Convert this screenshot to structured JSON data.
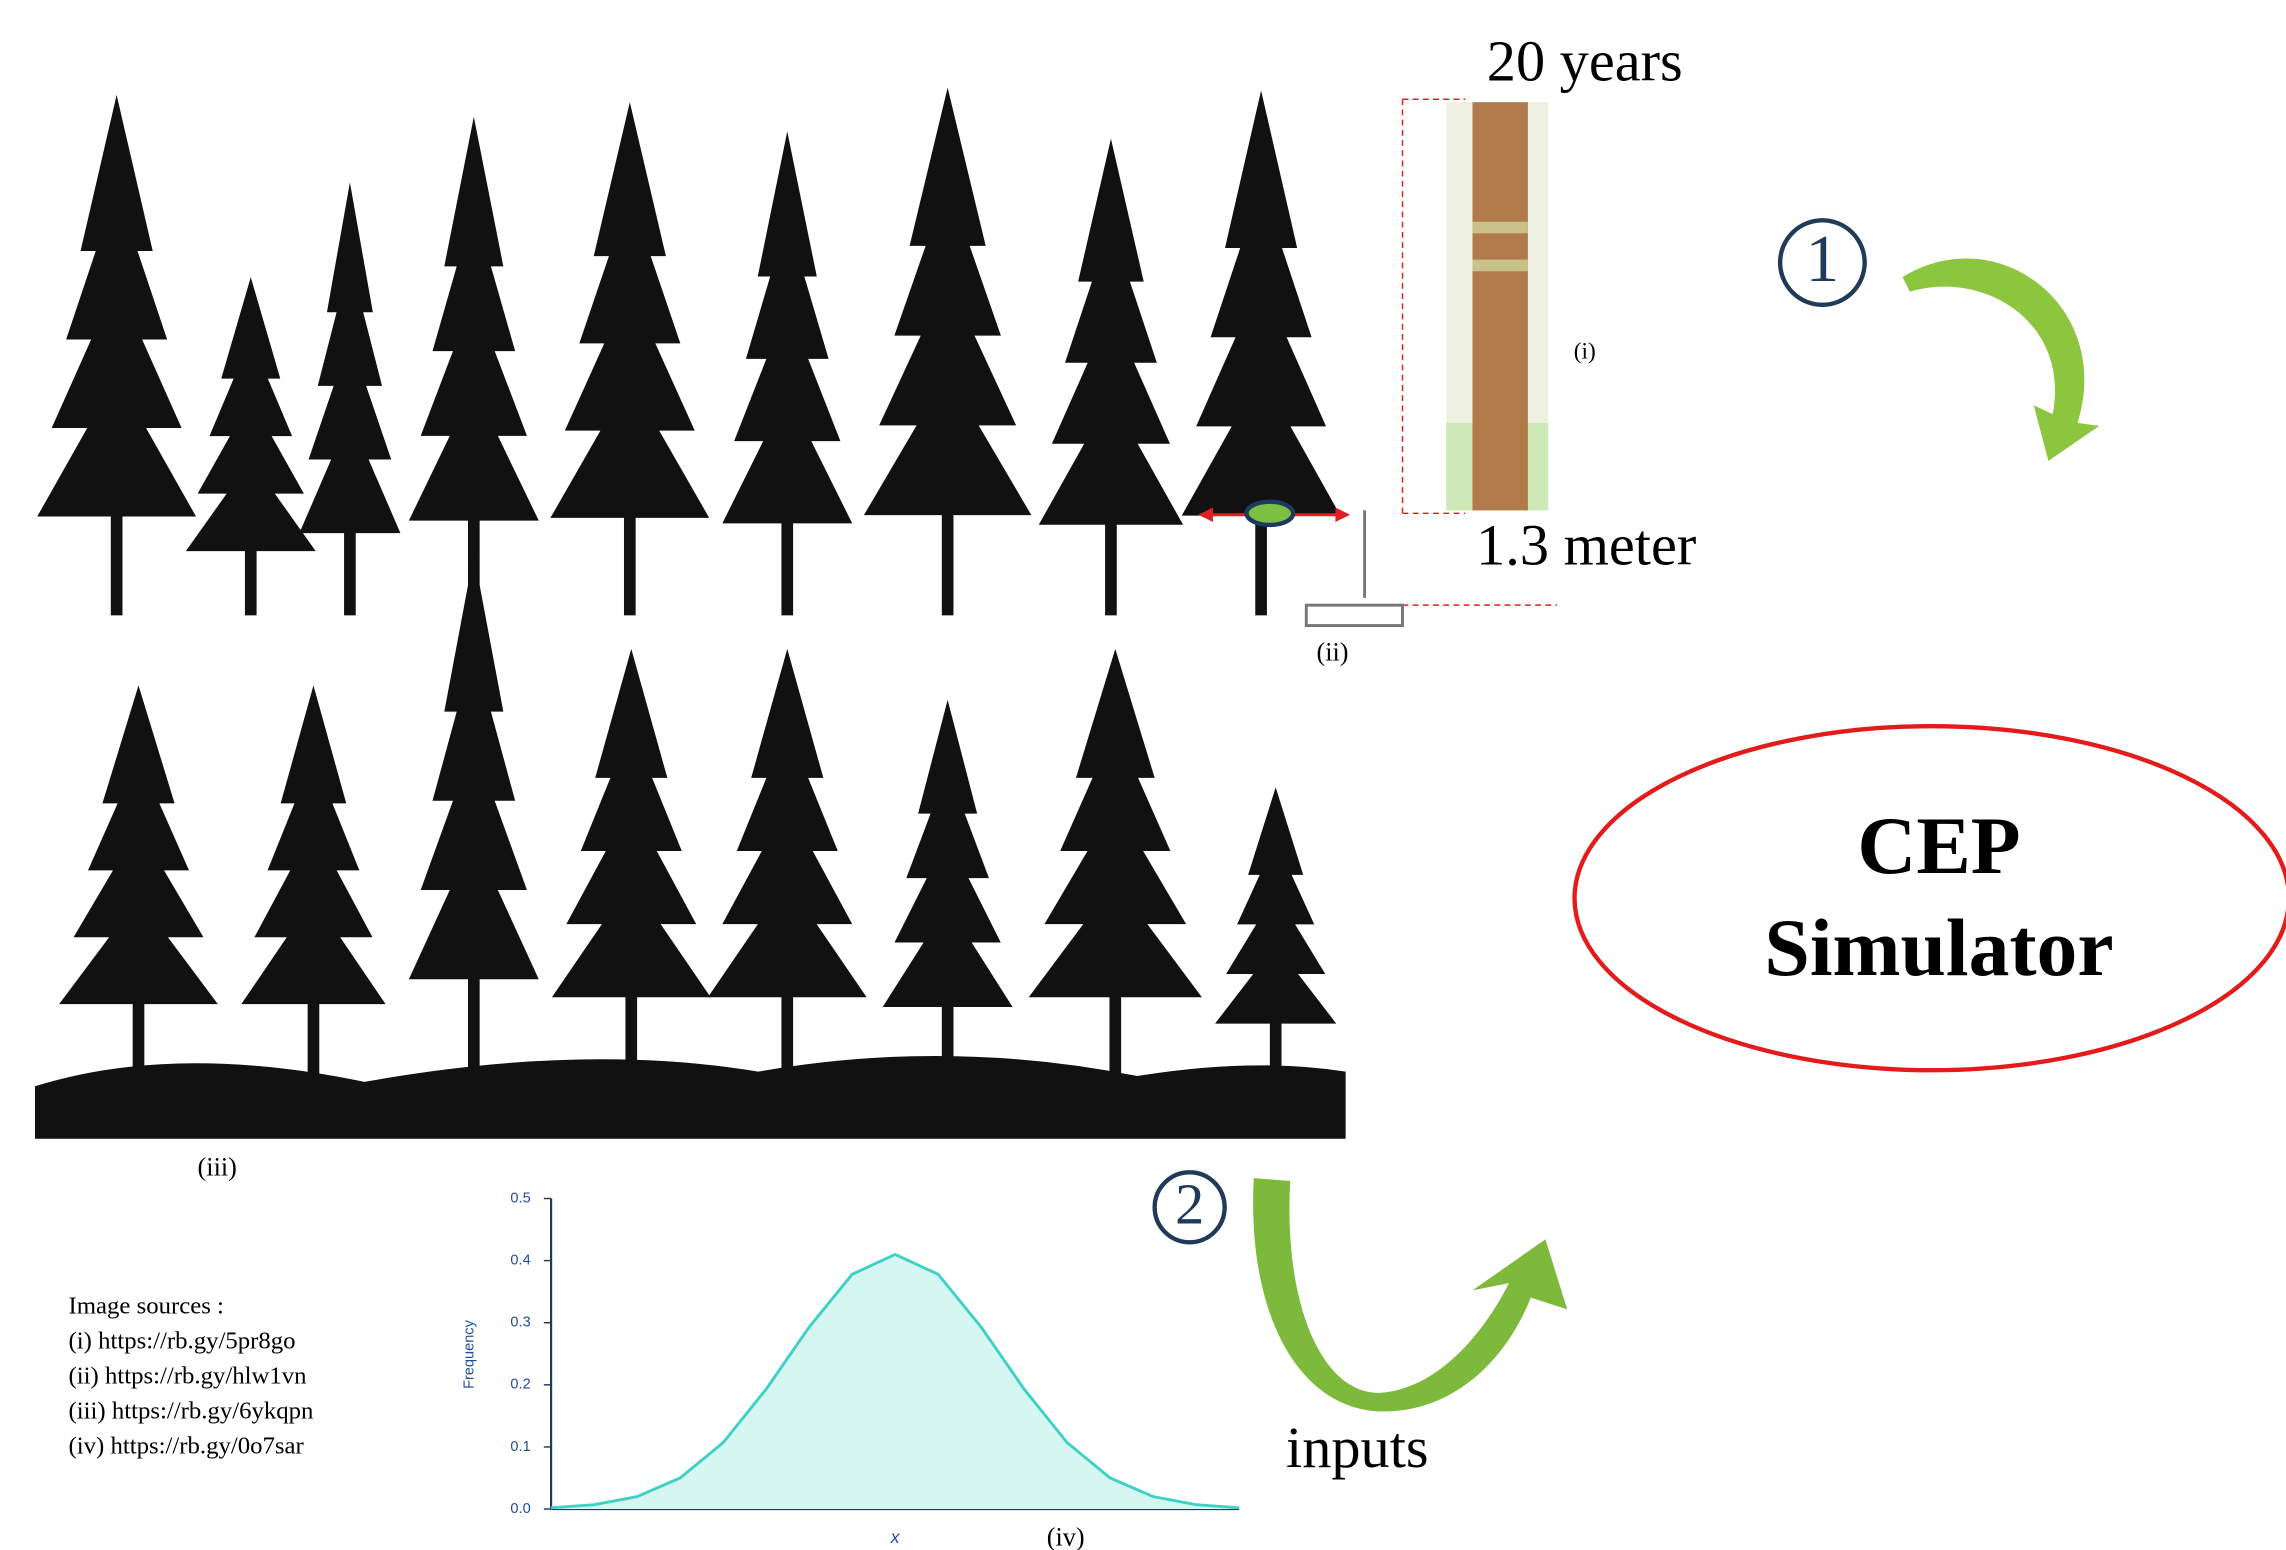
{
  "labels": {
    "years": "20 years",
    "height": "1.3 meter",
    "i": "(i)",
    "ii": "(ii)",
    "iii": "(iii)",
    "iv": "(iv)",
    "step1": "1",
    "step2": "2",
    "simulator": [
      "CEP",
      "Simulator"
    ],
    "inputs": "inputs"
  },
  "sources": {
    "title": "Image sources :",
    "items": [
      "(i) https://rb.gy/5pr8go",
      "(ii) https://rb.gy/hlw1vn",
      "(iii) https://rb.gy/6ykqpn",
      "(iv) https://rb.gy/0o7sar"
    ]
  },
  "chart_data": {
    "type": "area",
    "y_label": "Frequency",
    "x_label": "x",
    "color": "#3fd1c4",
    "fill": "#d6f6f2",
    "categories": [
      null,
      null,
      null,
      null,
      null,
      null,
      null,
      null,
      null,
      null,
      null,
      null,
      null,
      null,
      null,
      null,
      null
    ],
    "values": [
      0.002,
      0.007,
      0.02,
      0.05,
      0.107,
      0.193,
      0.293,
      0.378,
      0.41,
      0.378,
      0.293,
      0.193,
      0.107,
      0.05,
      0.02,
      0.007,
      0.002
    ],
    "ylim": [
      0,
      0.5
    ],
    "yticks": [
      {
        "value": 0,
        "label": "0.0"
      },
      0.1,
      0.2,
      0.3,
      0.4,
      0.5
    ]
  }
}
